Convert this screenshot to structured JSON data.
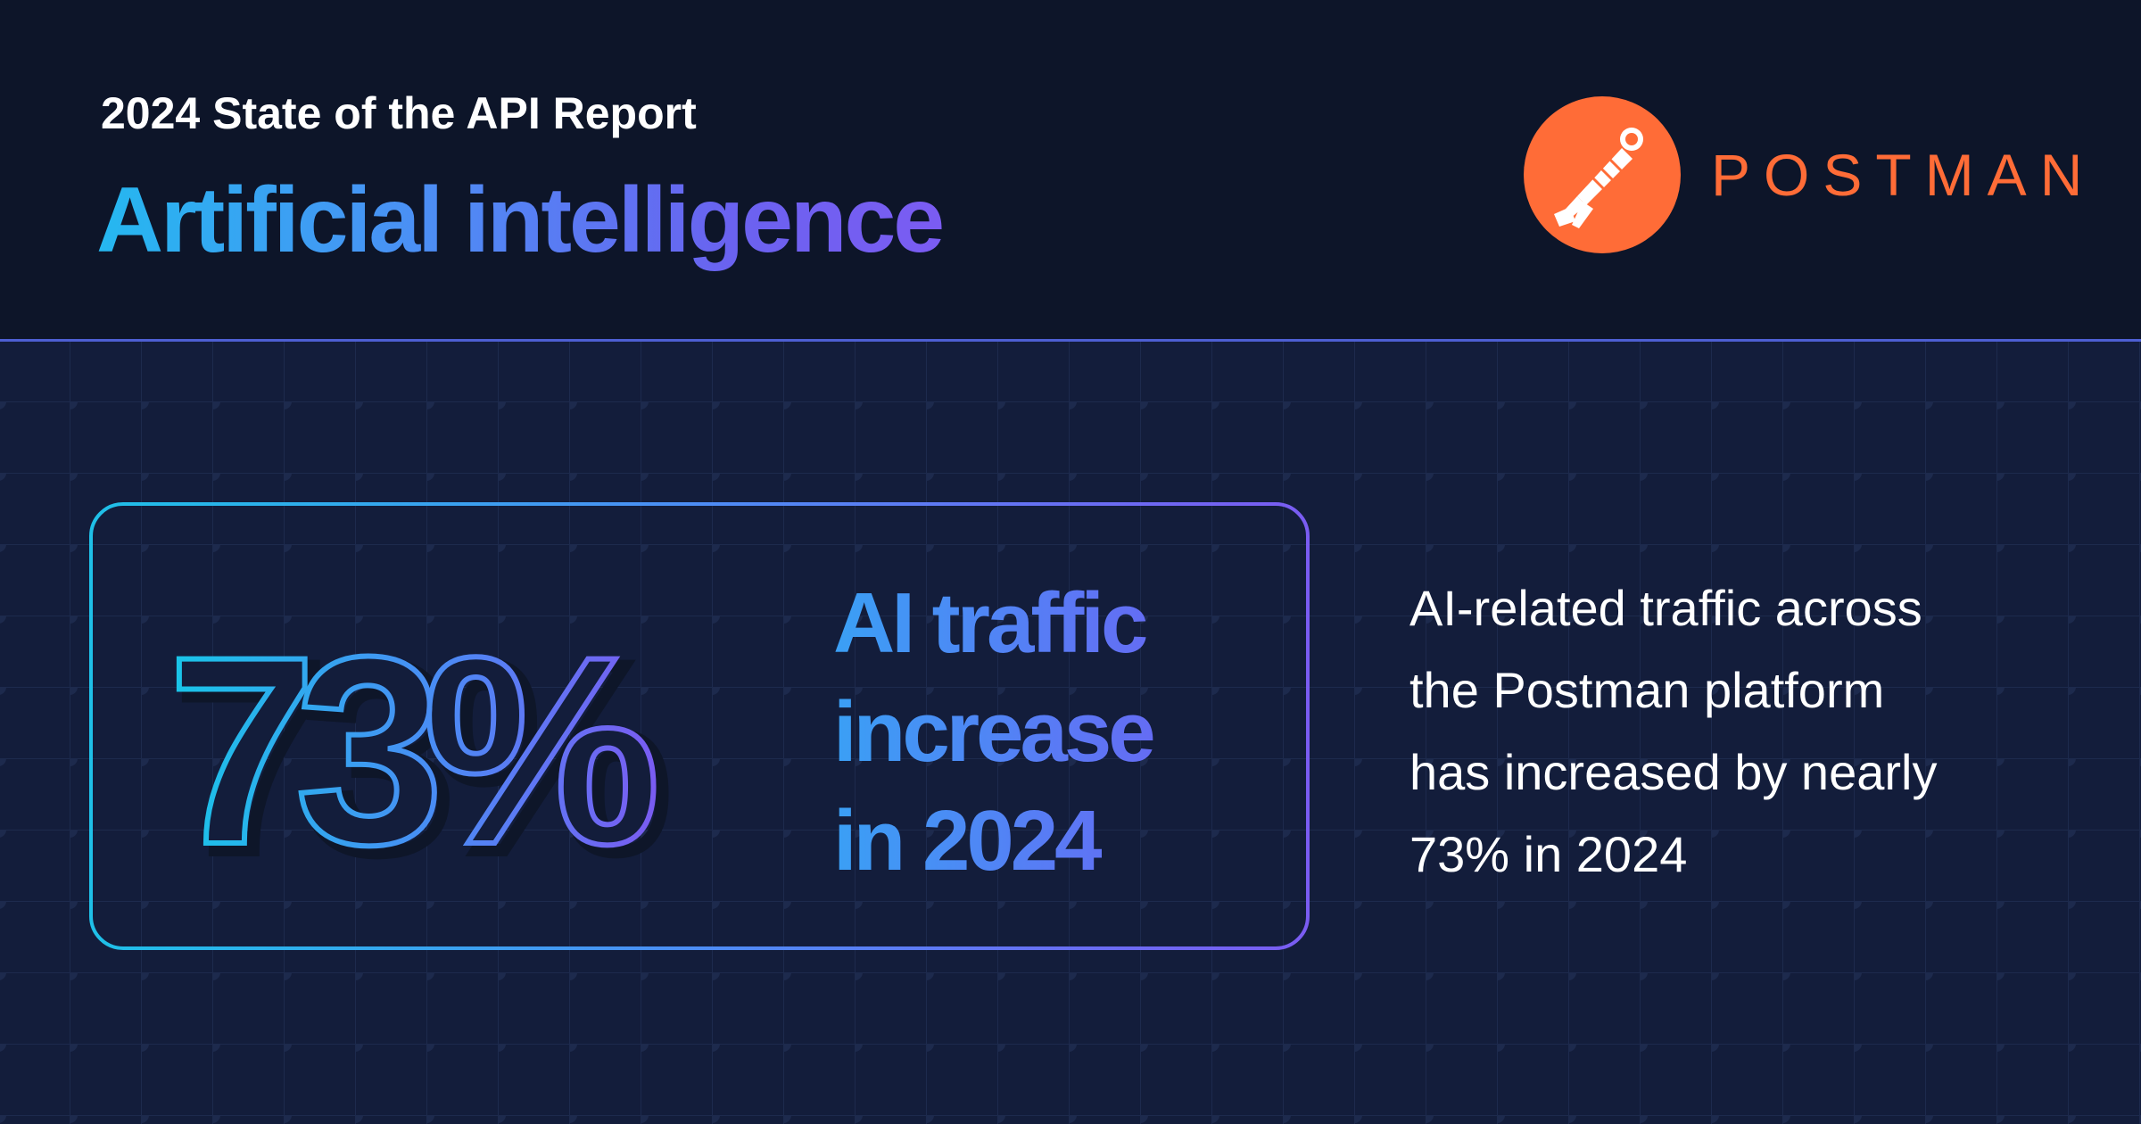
{
  "header": {
    "subtitle": "2024 State of the API Report",
    "title": "Artificial intelligence",
    "brand": "POSTMAN"
  },
  "stat": {
    "value": "73%",
    "headline_lines": [
      "AI traffic",
      "increase",
      "in 2024"
    ]
  },
  "description_lines": [
    "AI-related traffic across",
    "the Postman platform",
    "has increased by nearly",
    "73% in 2024"
  ],
  "colors": {
    "brand_orange": "#ff6c37",
    "gradient_start": "#1fc0e8",
    "gradient_end": "#7a5cf2",
    "background": "#131d3b",
    "header_background": "#0d1529",
    "divider": "#4d5fd3"
  },
  "icons": {
    "logo": "postman-astronaut-logo-icon"
  }
}
